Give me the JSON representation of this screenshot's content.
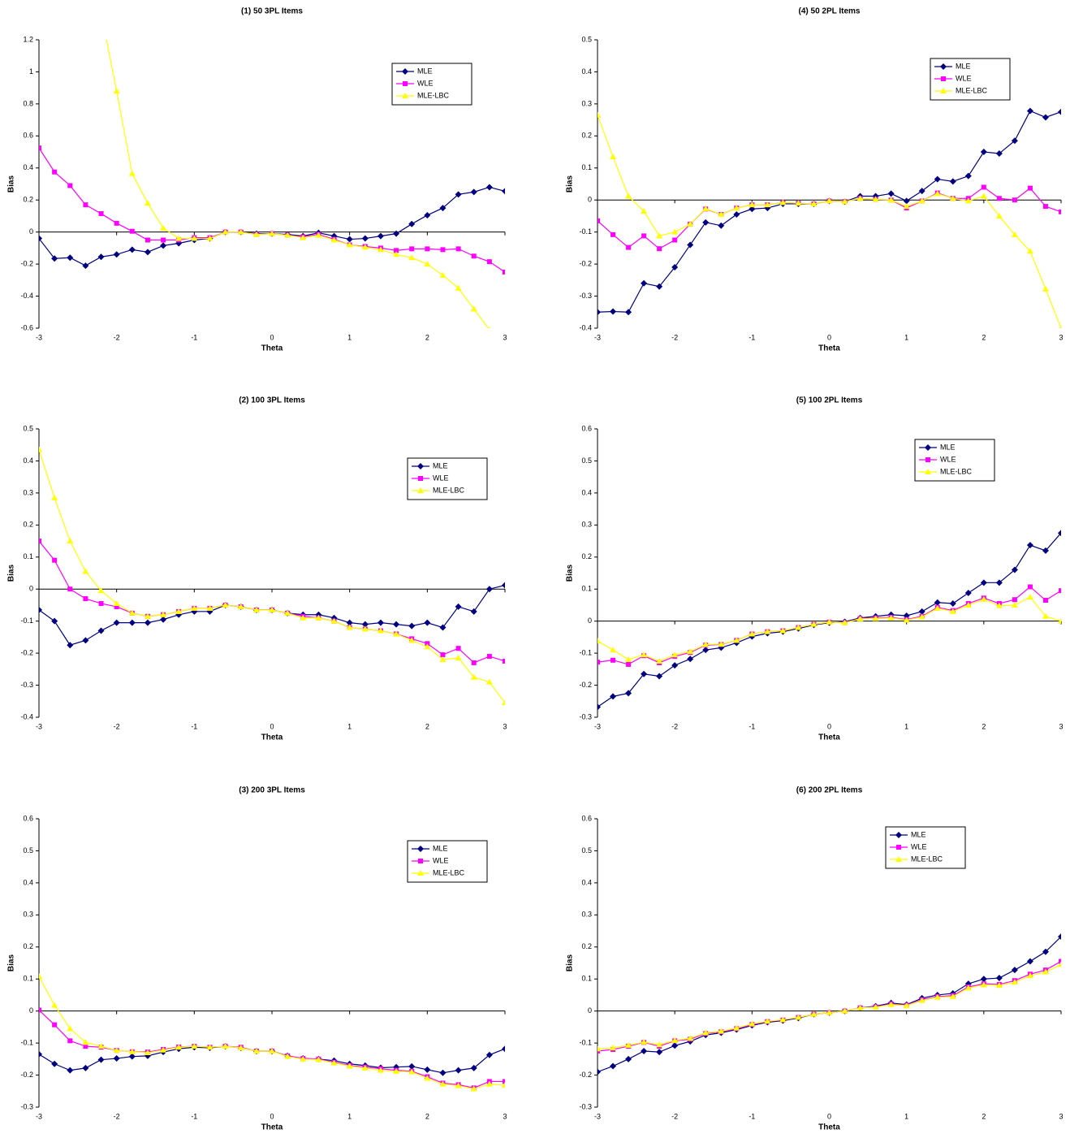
{
  "chart_data": [
    {
      "type": "line",
      "title": "(1) 50 3PL Items",
      "xlabel": "Theta",
      "ylabel": "Bias",
      "x": [
        -3,
        -2.8,
        -2.6,
        -2.4,
        -2.2,
        -2,
        -1.8,
        -1.6,
        -1.4,
        -1.2,
        -1,
        -0.8,
        -0.6,
        -0.4,
        -0.2,
        0,
        0.2,
        0.4,
        0.6,
        0.8,
        1,
        1.2,
        1.4,
        1.6,
        1.8,
        2,
        2.2,
        2.4,
        2.6,
        2.8,
        3
      ],
      "xlim": [
        -3,
        3
      ],
      "xticks": [
        -3,
        -2,
        -1,
        0,
        1,
        2,
        3
      ],
      "ylim": [
        -0.6,
        1.2
      ],
      "yticks": [
        -0.6,
        -0.4,
        -0.2,
        0,
        0.2,
        0.4,
        0.6,
        0.8,
        1,
        1.2
      ],
      "legend": "upper right",
      "series": [
        {
          "name": "MLE",
          "color": "#000080",
          "marker": "diamond",
          "values": [
            -0.04,
            -0.165,
            -0.16,
            -0.21,
            -0.155,
            -0.14,
            -0.11,
            -0.125,
            -0.085,
            -0.07,
            -0.05,
            -0.04,
            0.0,
            0.0,
            -0.01,
            -0.01,
            -0.015,
            -0.025,
            -0.005,
            -0.025,
            -0.045,
            -0.04,
            -0.025,
            -0.01,
            0.05,
            0.105,
            0.15,
            0.235,
            0.25,
            0.28,
            0.255
          ]
        },
        {
          "name": "WLE",
          "color": "#ff00ff",
          "marker": "square",
          "values": [
            0.525,
            0.375,
            0.29,
            0.17,
            0.115,
            0.055,
            0.005,
            -0.05,
            -0.05,
            -0.05,
            -0.035,
            -0.035,
            0.0,
            0.0,
            -0.015,
            -0.01,
            -0.02,
            -0.03,
            -0.015,
            -0.045,
            -0.08,
            -0.09,
            -0.1,
            -0.115,
            -0.105,
            -0.105,
            -0.11,
            -0.105,
            -0.15,
            -0.185,
            -0.25
          ]
        },
        {
          "name": "MLE-LBC",
          "color": "#ffff00",
          "marker": "triangle",
          "values": [
            null,
            null,
            null,
            null,
            1.37,
            0.88,
            0.365,
            0.18,
            0.025,
            -0.04,
            -0.04,
            -0.04,
            0.0,
            0.0,
            -0.015,
            -0.01,
            -0.02,
            -0.035,
            -0.02,
            -0.05,
            -0.08,
            -0.095,
            -0.11,
            -0.14,
            -0.16,
            -0.2,
            -0.27,
            -0.35,
            -0.48,
            -0.61,
            null
          ]
        }
      ]
    },
    {
      "type": "line",
      "title": "(2) 100 3PL Items",
      "xlabel": "Theta",
      "ylabel": "Bias",
      "x": [
        -3,
        -2.8,
        -2.6,
        -2.4,
        -2.2,
        -2,
        -1.8,
        -1.6,
        -1.4,
        -1.2,
        -1,
        -0.8,
        -0.6,
        -0.4,
        -0.2,
        0,
        0.2,
        0.4,
        0.6,
        0.8,
        1,
        1.2,
        1.4,
        1.6,
        1.8,
        2,
        2.2,
        2.4,
        2.6,
        2.8,
        3
      ],
      "xlim": [
        -3,
        3
      ],
      "xticks": [
        -3,
        -2,
        -1,
        0,
        1,
        2,
        3
      ],
      "ylim": [
        -0.4,
        0.5
      ],
      "yticks": [
        -0.4,
        -0.3,
        -0.2,
        -0.1,
        0,
        0.1,
        0.2,
        0.3,
        0.4,
        0.5
      ],
      "legend": "upper right",
      "series": [
        {
          "name": "MLE",
          "color": "#000080",
          "marker": "diamond",
          "values": [
            -0.065,
            -0.1,
            -0.175,
            -0.16,
            -0.13,
            -0.105,
            -0.105,
            -0.105,
            -0.095,
            -0.08,
            -0.07,
            -0.07,
            -0.05,
            -0.055,
            -0.065,
            -0.065,
            -0.075,
            -0.08,
            -0.08,
            -0.09,
            -0.105,
            -0.11,
            -0.105,
            -0.11,
            -0.115,
            -0.105,
            -0.12,
            -0.055,
            -0.07,
            0.0,
            0.012
          ]
        },
        {
          "name": "WLE",
          "color": "#ff00ff",
          "marker": "square",
          "values": [
            0.15,
            0.09,
            0.0,
            -0.03,
            -0.045,
            -0.055,
            -0.075,
            -0.085,
            -0.08,
            -0.07,
            -0.06,
            -0.06,
            -0.05,
            -0.055,
            -0.065,
            -0.065,
            -0.075,
            -0.085,
            -0.09,
            -0.1,
            -0.12,
            -0.125,
            -0.13,
            -0.14,
            -0.155,
            -0.17,
            -0.205,
            -0.185,
            -0.23,
            -0.21,
            -0.225
          ]
        },
        {
          "name": "MLE-LBC",
          "color": "#ffff00",
          "marker": "triangle",
          "values": [
            0.435,
            0.285,
            0.15,
            0.055,
            -0.005,
            -0.045,
            -0.075,
            -0.085,
            -0.08,
            -0.07,
            -0.06,
            -0.06,
            -0.05,
            -0.055,
            -0.065,
            -0.065,
            -0.075,
            -0.09,
            -0.09,
            -0.1,
            -0.12,
            -0.125,
            -0.13,
            -0.14,
            -0.16,
            -0.18,
            -0.22,
            -0.215,
            -0.275,
            -0.29,
            -0.355
          ]
        }
      ]
    },
    {
      "type": "line",
      "title": "(3) 200 3PL Items",
      "xlabel": "Theta",
      "ylabel": "Bias",
      "x": [
        -3,
        -2.8,
        -2.6,
        -2.4,
        -2.2,
        -2,
        -1.8,
        -1.6,
        -1.4,
        -1.2,
        -1,
        -0.8,
        -0.6,
        -0.4,
        -0.2,
        0,
        0.2,
        0.4,
        0.6,
        0.8,
        1,
        1.2,
        1.4,
        1.6,
        1.8,
        2,
        2.2,
        2.4,
        2.6,
        2.8,
        3
      ],
      "xlim": [
        -3,
        3
      ],
      "xticks": [
        -3,
        -2,
        -1,
        0,
        1,
        2,
        3
      ],
      "ylim": [
        -0.3,
        0.6
      ],
      "yticks": [
        -0.3,
        -0.2,
        -0.1,
        0,
        0.1,
        0.2,
        0.3,
        0.4,
        0.5,
        0.6
      ],
      "legend": "upper right",
      "series": [
        {
          "name": "MLE",
          "color": "#000080",
          "marker": "diamond",
          "values": [
            -0.135,
            -0.165,
            -0.185,
            -0.178,
            -0.152,
            -0.148,
            -0.142,
            -0.14,
            -0.128,
            -0.118,
            -0.113,
            -0.115,
            -0.11,
            -0.115,
            -0.125,
            -0.125,
            -0.14,
            -0.148,
            -0.15,
            -0.155,
            -0.165,
            -0.17,
            -0.177,
            -0.175,
            -0.173,
            -0.183,
            -0.193,
            -0.185,
            -0.178,
            -0.137,
            -0.118
          ]
        },
        {
          "name": "WLE",
          "color": "#ff00ff",
          "marker": "square",
          "values": [
            0.003,
            -0.043,
            -0.093,
            -0.11,
            -0.113,
            -0.123,
            -0.127,
            -0.128,
            -0.12,
            -0.112,
            -0.11,
            -0.113,
            -0.11,
            -0.113,
            -0.125,
            -0.125,
            -0.14,
            -0.148,
            -0.15,
            -0.16,
            -0.17,
            -0.175,
            -0.18,
            -0.185,
            -0.188,
            -0.205,
            -0.225,
            -0.23,
            -0.24,
            -0.22,
            -0.22
          ]
        },
        {
          "name": "MLE-LBC",
          "color": "#ffff00",
          "marker": "triangle",
          "values": [
            0.108,
            0.018,
            -0.055,
            -0.098,
            -0.11,
            -0.123,
            -0.127,
            -0.13,
            -0.122,
            -0.113,
            -0.11,
            -0.113,
            -0.11,
            -0.115,
            -0.125,
            -0.125,
            -0.142,
            -0.15,
            -0.152,
            -0.162,
            -0.172,
            -0.178,
            -0.185,
            -0.188,
            -0.19,
            -0.21,
            -0.228,
            -0.233,
            -0.243,
            -0.228,
            -0.232
          ]
        }
      ]
    },
    {
      "type": "line",
      "title": "(4) 50 2PL Items",
      "xlabel": "Theta",
      "ylabel": "Bias",
      "x": [
        -3,
        -2.8,
        -2.6,
        -2.4,
        -2.2,
        -2,
        -1.8,
        -1.6,
        -1.4,
        -1.2,
        -1,
        -0.8,
        -0.6,
        -0.4,
        -0.2,
        0,
        0.2,
        0.4,
        0.6,
        0.8,
        1,
        1.2,
        1.4,
        1.6,
        1.8,
        2,
        2.2,
        2.4,
        2.6,
        2.8,
        3
      ],
      "xlim": [
        -3,
        3
      ],
      "xticks": [
        -3,
        -2,
        -1,
        0,
        1,
        2,
        3
      ],
      "ylim": [
        -0.4,
        0.5
      ],
      "yticks": [
        -0.4,
        -0.3,
        -0.2,
        -0.1,
        0,
        0.1,
        0.2,
        0.3,
        0.4,
        0.5
      ],
      "legend": "upper right",
      "series": [
        {
          "name": "MLE",
          "color": "#000080",
          "marker": "diamond",
          "values": [
            -0.35,
            -0.348,
            -0.35,
            -0.26,
            -0.27,
            -0.21,
            -0.14,
            -0.07,
            -0.08,
            -0.045,
            -0.028,
            -0.025,
            -0.012,
            -0.012,
            -0.012,
            -0.003,
            -0.005,
            0.012,
            0.012,
            0.02,
            -0.003,
            0.028,
            0.065,
            0.058,
            0.075,
            0.15,
            0.145,
            0.185,
            0.278,
            0.258,
            0.275
          ]
        },
        {
          "name": "WLE",
          "color": "#ff00ff",
          "marker": "square",
          "values": [
            -0.065,
            -0.108,
            -0.148,
            -0.112,
            -0.152,
            -0.125,
            -0.075,
            -0.028,
            -0.045,
            -0.025,
            -0.015,
            -0.015,
            -0.008,
            -0.01,
            -0.012,
            -0.003,
            -0.005,
            0.005,
            0.002,
            0.0,
            -0.025,
            -0.003,
            0.022,
            0.005,
            0.005,
            0.04,
            0.005,
            0.0,
            0.037,
            -0.02,
            -0.037
          ]
        },
        {
          "name": "MLE-LBC",
          "color": "#ffff00",
          "marker": "triangle",
          "values": [
            0.265,
            0.135,
            0.012,
            -0.035,
            -0.112,
            -0.1,
            -0.075,
            -0.027,
            -0.045,
            -0.025,
            -0.015,
            -0.015,
            -0.008,
            -0.01,
            -0.012,
            -0.003,
            -0.005,
            0.005,
            0.002,
            0.0,
            -0.02,
            -0.003,
            0.02,
            0.005,
            -0.003,
            0.012,
            -0.05,
            -0.108,
            -0.16,
            -0.278,
            -0.4
          ]
        }
      ]
    },
    {
      "type": "line",
      "title": "(5) 100 2PL Items",
      "xlabel": "Theta",
      "ylabel": "Bias",
      "x": [
        -3,
        -2.8,
        -2.6,
        -2.4,
        -2.2,
        -2,
        -1.8,
        -1.6,
        -1.4,
        -1.2,
        -1,
        -0.8,
        -0.6,
        -0.4,
        -0.2,
        0,
        0.2,
        0.4,
        0.6,
        0.8,
        1,
        1.2,
        1.4,
        1.6,
        1.8,
        2,
        2.2,
        2.4,
        2.6,
        2.8,
        3
      ],
      "xlim": [
        -3,
        3
      ],
      "xticks": [
        -3,
        -2,
        -1,
        0,
        1,
        2,
        3
      ],
      "ylim": [
        -0.3,
        0.6
      ],
      "yticks": [
        -0.3,
        -0.2,
        -0.1,
        0,
        0.1,
        0.2,
        0.3,
        0.4,
        0.5,
        0.6
      ],
      "legend": "upper right",
      "series": [
        {
          "name": "MLE",
          "color": "#000080",
          "marker": "diamond",
          "values": [
            -0.268,
            -0.235,
            -0.225,
            -0.165,
            -0.172,
            -0.138,
            -0.118,
            -0.09,
            -0.083,
            -0.068,
            -0.048,
            -0.038,
            -0.033,
            -0.023,
            -0.012,
            -0.005,
            -0.002,
            0.01,
            0.015,
            0.02,
            0.017,
            0.03,
            0.058,
            0.055,
            0.088,
            0.12,
            0.12,
            0.16,
            0.237,
            0.22,
            0.275
          ]
        },
        {
          "name": "WLE",
          "color": "#ff00ff",
          "marker": "square",
          "values": [
            -0.128,
            -0.122,
            -0.135,
            -0.108,
            -0.13,
            -0.11,
            -0.098,
            -0.075,
            -0.073,
            -0.06,
            -0.04,
            -0.033,
            -0.03,
            -0.02,
            -0.01,
            -0.003,
            -0.005,
            0.008,
            0.01,
            0.012,
            0.005,
            0.015,
            0.043,
            0.033,
            0.055,
            0.072,
            0.055,
            0.067,
            0.107,
            0.065,
            0.095
          ]
        },
        {
          "name": "MLE-LBC",
          "color": "#ffff00",
          "marker": "triangle",
          "values": [
            -0.062,
            -0.09,
            -0.12,
            -0.105,
            -0.125,
            -0.105,
            -0.095,
            -0.073,
            -0.072,
            -0.06,
            -0.04,
            -0.033,
            -0.03,
            -0.02,
            -0.01,
            -0.003,
            -0.005,
            0.007,
            0.008,
            0.01,
            0.003,
            0.013,
            0.04,
            0.03,
            0.05,
            0.068,
            0.048,
            0.05,
            0.075,
            0.015,
            0.0
          ]
        }
      ]
    },
    {
      "type": "line",
      "title": "(6) 200 2PL Items",
      "xlabel": "Theta",
      "ylabel": "Bias",
      "x": [
        -3,
        -2.8,
        -2.6,
        -2.4,
        -2.2,
        -2,
        -1.8,
        -1.6,
        -1.4,
        -1.2,
        -1,
        -0.8,
        -0.6,
        -0.4,
        -0.2,
        0,
        0.2,
        0.4,
        0.6,
        0.8,
        1,
        1.2,
        1.4,
        1.6,
        1.8,
        2,
        2.2,
        2.4,
        2.6,
        2.8,
        3
      ],
      "xlim": [
        -3,
        3
      ],
      "xticks": [
        -3,
        -2,
        -1,
        0,
        1,
        2,
        3
      ],
      "ylim": [
        -0.3,
        0.6
      ],
      "yticks": [
        -0.3,
        -0.2,
        -0.1,
        0,
        0.1,
        0.2,
        0.3,
        0.4,
        0.5,
        0.6
      ],
      "legend": "upper right",
      "series": [
        {
          "name": "MLE",
          "color": "#000080",
          "marker": "diamond",
          "values": [
            -0.19,
            -0.172,
            -0.15,
            -0.125,
            -0.128,
            -0.108,
            -0.095,
            -0.075,
            -0.068,
            -0.058,
            -0.045,
            -0.035,
            -0.03,
            -0.022,
            -0.01,
            -0.005,
            0.0,
            0.01,
            0.015,
            0.025,
            0.02,
            0.04,
            0.05,
            0.055,
            0.085,
            0.1,
            0.103,
            0.128,
            0.155,
            0.185,
            0.232
          ]
        },
        {
          "name": "WLE",
          "color": "#ff00ff",
          "marker": "square",
          "values": [
            -0.125,
            -0.12,
            -0.11,
            -0.098,
            -0.11,
            -0.093,
            -0.088,
            -0.07,
            -0.065,
            -0.055,
            -0.042,
            -0.033,
            -0.028,
            -0.02,
            -0.01,
            -0.005,
            0.0,
            0.01,
            0.013,
            0.022,
            0.018,
            0.035,
            0.045,
            0.048,
            0.075,
            0.085,
            0.083,
            0.095,
            0.115,
            0.128,
            0.155
          ]
        },
        {
          "name": "MLE-LBC",
          "color": "#ffff00",
          "marker": "triangle",
          "values": [
            -0.118,
            -0.115,
            -0.107,
            -0.097,
            -0.105,
            -0.092,
            -0.085,
            -0.068,
            -0.063,
            -0.053,
            -0.04,
            -0.032,
            -0.027,
            -0.02,
            -0.01,
            -0.005,
            0.0,
            0.01,
            0.012,
            0.02,
            0.017,
            0.033,
            0.043,
            0.045,
            0.072,
            0.082,
            0.08,
            0.09,
            0.11,
            0.122,
            0.145
          ]
        }
      ]
    }
  ]
}
